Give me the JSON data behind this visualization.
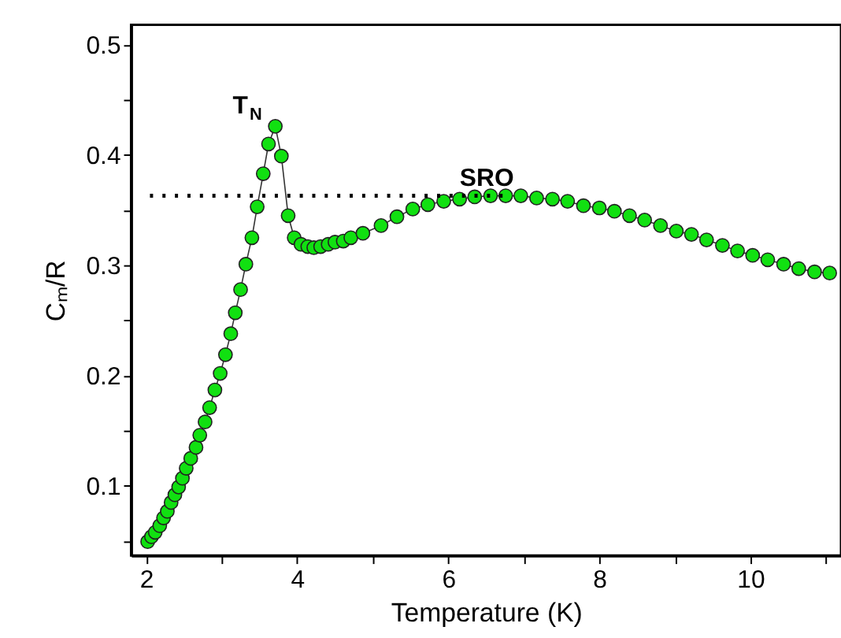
{
  "chart_data": {
    "type": "line",
    "xlabel": "Temperature (K)",
    "ylabel": "Cₘ/R",
    "xlim": [
      1.8,
      11.2
    ],
    "ylim": [
      0.037,
      0.518
    ],
    "xticks": [
      2,
      {
        "value": 3,
        "label": null
      },
      4,
      {
        "value": 5,
        "label": null
      },
      6,
      {
        "value": 7,
        "label": null
      },
      8,
      {
        "value": 9,
        "label": null
      },
      10,
      {
        "value": 11,
        "label": null
      }
    ],
    "yticks": [
      {
        "value": 0.05,
        "label": null
      },
      0.1,
      {
        "value": 0.15,
        "label": null
      },
      0.2,
      {
        "value": 0.25,
        "label": null
      },
      0.3,
      {
        "value": 0.35,
        "label": null
      },
      0.4,
      {
        "value": 0.45,
        "label": null
      },
      0.5
    ],
    "grid": false,
    "marker": "circle",
    "annotations": [
      "T$_{N}$",
      "SRO"
    ],
    "series": [
      {
        "color": "#11e011",
        "x": [
          2.02,
          2.07,
          2.12,
          2.18,
          2.23,
          2.28,
          2.33,
          2.38,
          2.43,
          2.48,
          2.53,
          2.59,
          2.66,
          2.71,
          2.78,
          2.84,
          2.91,
          2.98,
          3.05,
          3.12,
          3.18,
          3.25,
          3.32,
          3.4,
          3.47,
          3.55,
          3.62,
          3.71,
          3.79,
          3.88,
          3.96,
          4.05,
          4.14,
          4.22,
          4.31,
          4.41,
          4.5,
          4.61,
          4.71,
          4.87,
          5.11,
          5.32,
          5.53,
          5.73,
          5.94,
          6.15,
          6.35,
          6.56,
          6.76,
          6.96,
          7.17,
          7.38,
          7.58,
          7.79,
          8.0,
          8.2,
          8.4,
          8.6,
          8.81,
          9.02,
          9.22,
          9.42,
          9.63,
          9.83,
          10.03,
          10.23,
          10.44,
          10.64,
          10.85,
          11.05
        ],
        "values": [
          0.0495,
          0.054,
          0.058,
          0.064,
          0.071,
          0.077,
          0.085,
          0.092,
          0.099,
          0.107,
          0.116,
          0.125,
          0.135,
          0.146,
          0.158,
          0.171,
          0.187,
          0.202,
          0.219,
          0.238,
          0.257,
          0.278,
          0.301,
          0.325,
          0.353,
          0.383,
          0.41,
          0.426,
          0.399,
          0.345,
          0.325,
          0.319,
          0.317,
          0.316,
          0.317,
          0.319,
          0.321,
          0.322,
          0.325,
          0.329,
          0.336,
          0.344,
          0.351,
          0.355,
          0.358,
          0.36,
          0.362,
          0.363,
          0.363,
          0.363,
          0.361,
          0.36,
          0.358,
          0.354,
          0.352,
          0.349,
          0.345,
          0.341,
          0.336,
          0.331,
          0.328,
          0.323,
          0.318,
          0.313,
          0.309,
          0.305,
          0.301,
          0.297,
          0.294,
          0.293
        ]
      },
      {
        "type": "line",
        "color": "#000000",
        "line_style": "dotted",
        "marker": "none",
        "x": [
          2.05,
          6.8
        ],
        "values": [
          0.363,
          0.363
        ]
      }
    ]
  }
}
